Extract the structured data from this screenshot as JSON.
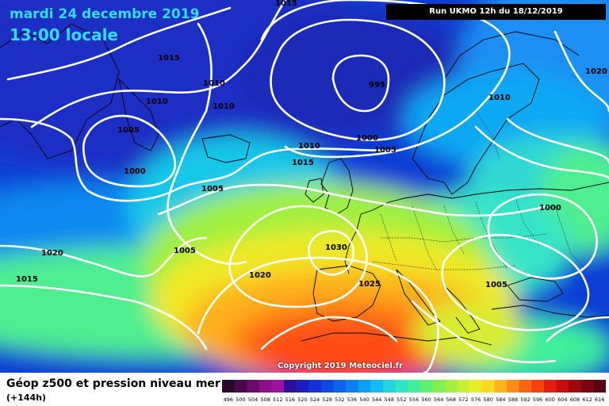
{
  "header": {
    "date": "mardi 24 decembre 2019",
    "time": "13:00 locale",
    "run": "Run UKMO 12h du 18/12/2019"
  },
  "copyright": "Copyright 2019 Meteociel.fr",
  "footer": {
    "title": "Géop z500 et pression niveau mer",
    "subtitle": "(+144h)"
  },
  "pressure_labels": [
    "1015",
    "1010",
    "1015",
    "1010",
    "1010",
    "995",
    "1010",
    "1020",
    "1005",
    "1000",
    "1000",
    "1005",
    "1010",
    "1015",
    "1005",
    "1000",
    "1020",
    "1005",
    "1030",
    "1015",
    "1020",
    "1025",
    "1005"
  ],
  "scale": {
    "values": [
      "496",
      "500",
      "504",
      "508",
      "512",
      "516",
      "520",
      "524",
      "528",
      "532",
      "536",
      "540",
      "544",
      "548",
      "552",
      "556",
      "560",
      "564",
      "568",
      "572",
      "576",
      "580",
      "584",
      "588",
      "592",
      "596",
      "600",
      "604",
      "608",
      "612",
      "616"
    ],
    "colors": [
      "#2a0a2a",
      "#4a0a4a",
      "#6a0a6a",
      "#8a108a",
      "#a010a0",
      "#2e0e9a",
      "#1c1cc4",
      "#1530d8",
      "#1048e6",
      "#0c64ee",
      "#0a80f4",
      "#0aa0f4",
      "#10bcf0",
      "#20d4e0",
      "#30e6c4",
      "#40f09a",
      "#60f070",
      "#80f050",
      "#a4f040",
      "#c8f030",
      "#eaec28",
      "#ffd820",
      "#ffb41c",
      "#ff8c18",
      "#ff6414",
      "#f84010",
      "#e41c10",
      "#c80c10",
      "#a00810",
      "#7c0410",
      "#5a0410"
    ]
  },
  "icons": [
    "scale-bar"
  ]
}
